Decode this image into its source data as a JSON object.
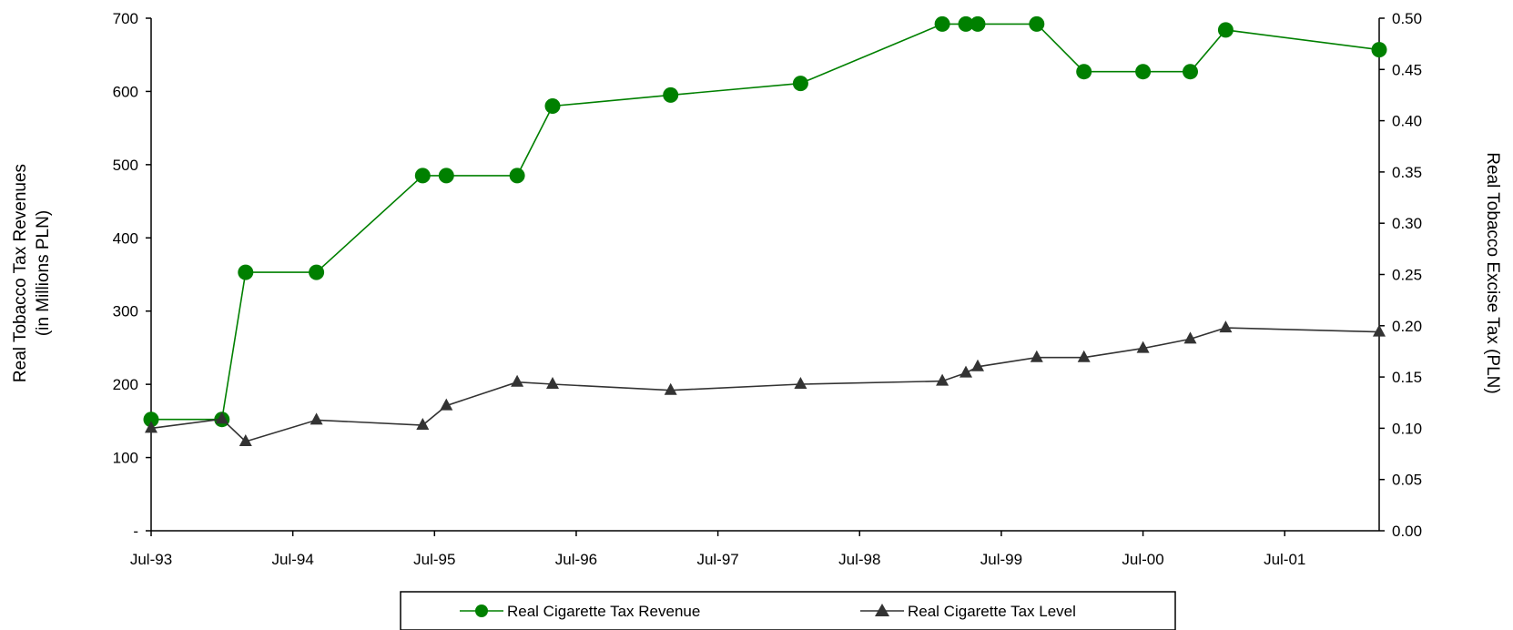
{
  "chart_data": {
    "type": "line",
    "x_axis": {
      "tick_labels": [
        "Jul-93",
        "Jul-94",
        "Jul-95",
        "Jul-96",
        "Jul-97",
        "Jul-98",
        "Jul-99",
        "Jul-00",
        "Jul-01"
      ],
      "range": [
        "1993-07",
        "2002-03"
      ]
    },
    "y_left": {
      "label_line1": "Real Tobacco Tax Revenues",
      "label_line2": "(in Millions PLN)",
      "ylim": [
        0,
        700
      ],
      "tick_labels": [
        "-",
        "100",
        "200",
        "300",
        "400",
        "500",
        "600",
        "700"
      ]
    },
    "y_right": {
      "label": "Real Tobacco Excise Tax (PLN)",
      "ylim": [
        0,
        0.5
      ],
      "tick_labels": [
        "0.00",
        "0.05",
        "0.10",
        "0.15",
        "0.20",
        "0.25",
        "0.30",
        "0.35",
        "0.40",
        "0.45",
        "0.50"
      ]
    },
    "series": [
      {
        "name": "Real Cigarette Tax Revenue",
        "axis": "left",
        "color": "#008000",
        "marker": "circle",
        "points": [
          {
            "x": "1993-07",
            "y": 152
          },
          {
            "x": "1994-01",
            "y": 152
          },
          {
            "x": "1994-03",
            "y": 353
          },
          {
            "x": "1994-09",
            "y": 353
          },
          {
            "x": "1995-06",
            "y": 485
          },
          {
            "x": "1995-08",
            "y": 485
          },
          {
            "x": "1996-02",
            "y": 485
          },
          {
            "x": "1996-05",
            "y": 580
          },
          {
            "x": "1997-03",
            "y": 595
          },
          {
            "x": "1998-02",
            "y": 611
          },
          {
            "x": "1999-02",
            "y": 692
          },
          {
            "x": "1999-04",
            "y": 692
          },
          {
            "x": "1999-05",
            "y": 692
          },
          {
            "x": "1999-10",
            "y": 692
          },
          {
            "x": "2000-02",
            "y": 627
          },
          {
            "x": "2000-07",
            "y": 627
          },
          {
            "x": "2000-11",
            "y": 627
          },
          {
            "x": "2001-02",
            "y": 684
          },
          {
            "x": "2002-03",
            "y": 657
          }
        ]
      },
      {
        "name": "Real Cigarette Tax Level",
        "axis": "right",
        "color": "#333333",
        "marker": "triangle",
        "points": [
          {
            "x": "1993-07",
            "y": 0.1
          },
          {
            "x": "1994-01",
            "y": 0.109
          },
          {
            "x": "1994-03",
            "y": 0.087
          },
          {
            "x": "1994-09",
            "y": 0.108
          },
          {
            "x": "1995-06",
            "y": 0.103
          },
          {
            "x": "1995-08",
            "y": 0.122
          },
          {
            "x": "1996-02",
            "y": 0.145
          },
          {
            "x": "1996-05",
            "y": 0.143
          },
          {
            "x": "1997-03",
            "y": 0.137
          },
          {
            "x": "1998-02",
            "y": 0.143
          },
          {
            "x": "1999-02",
            "y": 0.146
          },
          {
            "x": "1999-04",
            "y": 0.154
          },
          {
            "x": "1999-05",
            "y": 0.16
          },
          {
            "x": "1999-10",
            "y": 0.169
          },
          {
            "x": "2000-02",
            "y": 0.169
          },
          {
            "x": "2000-07",
            "y": 0.178
          },
          {
            "x": "2000-11",
            "y": 0.187
          },
          {
            "x": "2001-02",
            "y": 0.198
          },
          {
            "x": "2002-03",
            "y": 0.194
          }
        ]
      }
    ],
    "legend": {
      "position": "bottom-center",
      "entries": [
        "Real Cigarette Tax Revenue",
        "Real Cigarette Tax Level"
      ]
    },
    "grid": false
  }
}
